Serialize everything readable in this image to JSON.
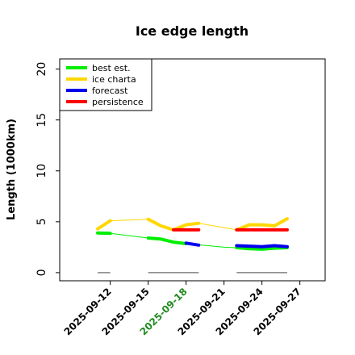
{
  "chart_data": {
    "type": "line",
    "title": "Ice edge length",
    "xlabel": "",
    "ylabel": "Length (1000km)",
    "xlim": [
      "2025-09-08",
      "2025-09-29"
    ],
    "ylim": [
      -0.8,
      21
    ],
    "yticks": [
      0,
      5,
      10,
      15,
      20
    ],
    "xticks": [
      "2025-09-12",
      "2025-09-15",
      "2025-09-18",
      "2025-09-21",
      "2025-09-24",
      "2025-09-27"
    ],
    "highlight_tick": "2025-09-18",
    "highlight_color": "#228B22",
    "grid": false,
    "legend_position": "top-left",
    "series": [
      {
        "name": "best est.",
        "color": "#00ee00",
        "segments": [
          {
            "thick": true,
            "points": [
              [
                "2025-09-11",
                3.9
              ],
              [
                "2025-09-12",
                3.85
              ]
            ]
          },
          {
            "thick": false,
            "points": [
              [
                "2025-09-12",
                3.85
              ],
              [
                "2025-09-15",
                3.4
              ]
            ]
          },
          {
            "thick": true,
            "points": [
              [
                "2025-09-15",
                3.4
              ],
              [
                "2025-09-16",
                3.3
              ],
              [
                "2025-09-17",
                3.0
              ],
              [
                "2025-09-18",
                2.85
              ]
            ]
          },
          {
            "thick": false,
            "points": [
              [
                "2025-09-18",
                2.85
              ],
              [
                "2025-09-21",
                2.5
              ],
              [
                "2025-09-22",
                2.45
              ]
            ]
          },
          {
            "thick": true,
            "points": [
              [
                "2025-09-22",
                2.45
              ],
              [
                "2025-09-23",
                2.35
              ],
              [
                "2025-09-24",
                2.3
              ],
              [
                "2025-09-25",
                2.4
              ],
              [
                "2025-09-26",
                2.45
              ]
            ]
          }
        ]
      },
      {
        "name": "ice charta",
        "color": "#ffd700",
        "segments": [
          {
            "thick": true,
            "points": [
              [
                "2025-09-11",
                4.3
              ],
              [
                "2025-09-12",
                5.1
              ]
            ]
          },
          {
            "thick": false,
            "points": [
              [
                "2025-09-12",
                5.1
              ],
              [
                "2025-09-15",
                5.25
              ]
            ]
          },
          {
            "thick": true,
            "points": [
              [
                "2025-09-15",
                5.25
              ],
              [
                "2025-09-16",
                4.6
              ],
              [
                "2025-09-17",
                4.2
              ],
              [
                "2025-09-18",
                4.7
              ],
              [
                "2025-09-19",
                4.85
              ]
            ]
          },
          {
            "thick": false,
            "points": [
              [
                "2025-09-19",
                4.85
              ],
              [
                "2025-09-22",
                4.2
              ]
            ]
          },
          {
            "thick": true,
            "points": [
              [
                "2025-09-22",
                4.2
              ],
              [
                "2025-09-23",
                4.7
              ],
              [
                "2025-09-24",
                4.7
              ],
              [
                "2025-09-25",
                4.6
              ],
              [
                "2025-09-26",
                5.3
              ]
            ]
          }
        ]
      },
      {
        "name": "forecast",
        "color": "#0000ee",
        "segments": [
          {
            "thick": true,
            "points": [
              [
                "2025-09-18",
                2.9
              ],
              [
                "2025-09-19",
                2.7
              ]
            ]
          },
          {
            "thick": true,
            "points": [
              [
                "2025-09-22",
                2.65
              ],
              [
                "2025-09-23",
                2.6
              ],
              [
                "2025-09-24",
                2.55
              ],
              [
                "2025-09-25",
                2.65
              ],
              [
                "2025-09-26",
                2.55
              ]
            ]
          }
        ]
      },
      {
        "name": "persistence",
        "color": "#ff0000",
        "segments": [
          {
            "thick": true,
            "points": [
              [
                "2025-09-17",
                4.2
              ],
              [
                "2025-09-19",
                4.2
              ]
            ]
          },
          {
            "thick": true,
            "points": [
              [
                "2025-09-22",
                4.2
              ],
              [
                "2025-09-26",
                4.2
              ]
            ]
          }
        ]
      }
    ],
    "zero_marks": {
      "color": "#808080",
      "ranges": [
        [
          "2025-09-11",
          "2025-09-12"
        ],
        [
          "2025-09-15",
          "2025-09-19"
        ],
        [
          "2025-09-22",
          "2025-09-26"
        ]
      ]
    }
  }
}
